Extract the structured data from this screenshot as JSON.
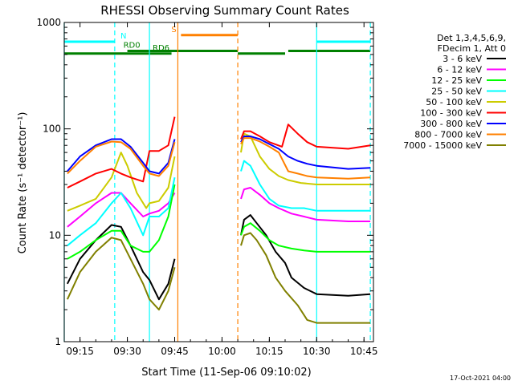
{
  "chart_data": {
    "type": "line",
    "title": "RHESSI Observing Summary Count Rates",
    "xlabel": "Start Time (11-Sep-06 09:10:02)",
    "ylabel": "Count Rate (s⁻¹ detector⁻¹)",
    "y_scale": "log",
    "ylim": [
      1,
      1000
    ],
    "xlim": [
      "09:10",
      "10:48"
    ],
    "x_ticks": [
      "09:15",
      "09:30",
      "09:45",
      "10:00",
      "10:15",
      "10:30",
      "10:45"
    ],
    "y_ticks": [
      "1",
      "10",
      "100",
      "1000"
    ],
    "footer_date": "17-Oct-2021 04:00",
    "legend": {
      "header": [
        "Det 1,3,4,5,6,9,",
        "FDecim 1, Att 0"
      ],
      "placement": "right"
    },
    "gaps": [
      [
        "09:46",
        "10:06"
      ]
    ],
    "series": [
      {
        "name": "3 - 6 keV",
        "color": "#000000",
        "points": [
          [
            "09:11",
            3.5
          ],
          [
            "09:15",
            6
          ],
          [
            "09:20",
            9
          ],
          [
            "09:25",
            12.5
          ],
          [
            "09:28",
            12
          ],
          [
            "09:31",
            8
          ],
          [
            "09:35",
            4.5
          ],
          [
            "09:37",
            3.8
          ],
          [
            "09:40",
            2.5
          ],
          [
            "09:43",
            3.5
          ],
          [
            "09:45",
            6
          ],
          [
            "10:06",
            10
          ],
          [
            "10:07",
            14
          ],
          [
            "10:09",
            15.5
          ],
          [
            "10:11",
            13
          ],
          [
            "10:14",
            10
          ],
          [
            "10:17",
            7
          ],
          [
            "10:20",
            5.5
          ],
          [
            "10:22",
            4
          ],
          [
            "10:26",
            3.2
          ],
          [
            "10:30",
            2.8
          ],
          [
            "10:40",
            2.7
          ],
          [
            "10:47",
            2.8
          ]
        ]
      },
      {
        "name": "6 - 12 keV",
        "color": "#ff00ff",
        "points": [
          [
            "09:11",
            12
          ],
          [
            "09:15",
            15
          ],
          [
            "09:20",
            20
          ],
          [
            "09:25",
            25
          ],
          [
            "09:28",
            25
          ],
          [
            "09:31",
            20
          ],
          [
            "09:35",
            15
          ],
          [
            "09:37",
            16
          ],
          [
            "09:40",
            17
          ],
          [
            "09:43",
            20
          ],
          [
            "09:45",
            25
          ],
          [
            "10:06",
            22
          ],
          [
            "10:07",
            27
          ],
          [
            "10:09",
            28
          ],
          [
            "10:12",
            24
          ],
          [
            "10:15",
            20
          ],
          [
            "10:18",
            18
          ],
          [
            "10:22",
            16
          ],
          [
            "10:26",
            15
          ],
          [
            "10:30",
            14
          ],
          [
            "10:40",
            13.5
          ],
          [
            "10:47",
            13.5
          ]
        ]
      },
      {
        "name": "12 - 25 keV",
        "color": "#00ff00",
        "points": [
          [
            "09:11",
            6
          ],
          [
            "09:15",
            7
          ],
          [
            "09:20",
            9
          ],
          [
            "09:25",
            11
          ],
          [
            "09:28",
            11
          ],
          [
            "09:31",
            8
          ],
          [
            "09:35",
            7
          ],
          [
            "09:37",
            7
          ],
          [
            "09:40",
            9
          ],
          [
            "09:43",
            15
          ],
          [
            "09:45",
            30
          ],
          [
            "10:06",
            10
          ],
          [
            "10:07",
            12
          ],
          [
            "10:09",
            13
          ],
          [
            "10:12",
            11
          ],
          [
            "10:15",
            9
          ],
          [
            "10:18",
            8
          ],
          [
            "10:22",
            7.5
          ],
          [
            "10:26",
            7.2
          ],
          [
            "10:30",
            7
          ],
          [
            "10:40",
            7
          ],
          [
            "10:47",
            7
          ]
        ]
      },
      {
        "name": "25 - 50 keV",
        "color": "#00ffff",
        "points": [
          [
            "09:11",
            8
          ],
          [
            "09:15",
            10
          ],
          [
            "09:20",
            13
          ],
          [
            "09:25",
            20
          ],
          [
            "09:28",
            25
          ],
          [
            "09:31",
            18
          ],
          [
            "09:35",
            10
          ],
          [
            "09:37",
            15
          ],
          [
            "09:40",
            15
          ],
          [
            "09:43",
            18
          ],
          [
            "09:45",
            35
          ],
          [
            "10:06",
            40
          ],
          [
            "10:07",
            50
          ],
          [
            "10:09",
            45
          ],
          [
            "10:12",
            30
          ],
          [
            "10:15",
            22
          ],
          [
            "10:18",
            19
          ],
          [
            "10:22",
            18
          ],
          [
            "10:26",
            18
          ],
          [
            "10:30",
            17
          ],
          [
            "10:40",
            17
          ],
          [
            "10:47",
            17
          ]
        ]
      },
      {
        "name": "50 - 100 keV",
        "color": "#cccc00",
        "points": [
          [
            "09:11",
            17
          ],
          [
            "09:15",
            19
          ],
          [
            "09:20",
            22
          ],
          [
            "09:25",
            35
          ],
          [
            "09:28",
            60
          ],
          [
            "09:30",
            45
          ],
          [
            "09:33",
            25
          ],
          [
            "09:36",
            18
          ],
          [
            "09:37",
            20
          ],
          [
            "09:40",
            21
          ],
          [
            "09:43",
            28
          ],
          [
            "09:45",
            55
          ],
          [
            "10:06",
            60
          ],
          [
            "10:07",
            90
          ],
          [
            "10:09",
            85
          ],
          [
            "10:12",
            55
          ],
          [
            "10:15",
            42
          ],
          [
            "10:18",
            36
          ],
          [
            "10:21",
            33
          ],
          [
            "10:25",
            31
          ],
          [
            "10:30",
            30
          ],
          [
            "10:40",
            30
          ],
          [
            "10:47",
            30
          ]
        ]
      },
      {
        "name": "100 - 300 keV",
        "color": "#ff0000",
        "points": [
          [
            "09:11",
            28
          ],
          [
            "09:15",
            32
          ],
          [
            "09:20",
            38
          ],
          [
            "09:25",
            42
          ],
          [
            "09:28",
            38
          ],
          [
            "09:31",
            35
          ],
          [
            "09:35",
            32
          ],
          [
            "09:37",
            62
          ],
          [
            "09:40",
            62
          ],
          [
            "09:43",
            70
          ],
          [
            "09:45",
            130
          ],
          [
            "10:06",
            80
          ],
          [
            "10:07",
            95
          ],
          [
            "10:09",
            95
          ],
          [
            "10:12",
            85
          ],
          [
            "10:15",
            75
          ],
          [
            "10:19",
            68
          ],
          [
            "10:21",
            110
          ],
          [
            "10:24",
            90
          ],
          [
            "10:27",
            75
          ],
          [
            "10:30",
            68
          ],
          [
            "10:40",
            65
          ],
          [
            "10:47",
            70
          ]
        ]
      },
      {
        "name": "300 - 800 keV",
        "color": "#0000ff",
        "points": [
          [
            "09:11",
            40
          ],
          [
            "09:15",
            55
          ],
          [
            "09:20",
            70
          ],
          [
            "09:25",
            80
          ],
          [
            "09:28",
            80
          ],
          [
            "09:31",
            68
          ],
          [
            "09:35",
            48
          ],
          [
            "09:37",
            40
          ],
          [
            "09:40",
            38
          ],
          [
            "09:43",
            48
          ],
          [
            "09:45",
            80
          ],
          [
            "10:06",
            75
          ],
          [
            "10:07",
            85
          ],
          [
            "10:09",
            85
          ],
          [
            "10:12",
            80
          ],
          [
            "10:15",
            72
          ],
          [
            "10:18",
            65
          ],
          [
            "10:21",
            55
          ],
          [
            "10:24",
            50
          ],
          [
            "10:27",
            47
          ],
          [
            "10:30",
            45
          ],
          [
            "10:40",
            42
          ],
          [
            "10:47",
            43
          ]
        ]
      },
      {
        "name": "800 - 7000 keV",
        "color": "#ff8000",
        "points": [
          [
            "09:11",
            38
          ],
          [
            "09:15",
            50
          ],
          [
            "09:20",
            68
          ],
          [
            "09:25",
            76
          ],
          [
            "09:28",
            75
          ],
          [
            "09:31",
            65
          ],
          [
            "09:35",
            45
          ],
          [
            "09:37",
            38
          ],
          [
            "09:40",
            36
          ],
          [
            "09:43",
            45
          ],
          [
            "09:45",
            75
          ],
          [
            "10:06",
            72
          ],
          [
            "10:07",
            82
          ],
          [
            "10:09",
            82
          ],
          [
            "10:12",
            76
          ],
          [
            "10:15",
            68
          ],
          [
            "10:18",
            60
          ],
          [
            "10:21",
            40
          ],
          [
            "10:24",
            38
          ],
          [
            "10:27",
            36
          ],
          [
            "10:30",
            35
          ],
          [
            "10:40",
            34
          ],
          [
            "10:47",
            35
          ]
        ]
      },
      {
        "name": "7000 - 15000 keV",
        "color": "#808000",
        "points": [
          [
            "09:11",
            2.5
          ],
          [
            "09:15",
            4.5
          ],
          [
            "09:20",
            7
          ],
          [
            "09:25",
            9.5
          ],
          [
            "09:28",
            9
          ],
          [
            "09:31",
            6
          ],
          [
            "09:35",
            3.5
          ],
          [
            "09:37",
            2.5
          ],
          [
            "09:40",
            2
          ],
          [
            "09:43",
            3
          ],
          [
            "09:45",
            5
          ],
          [
            "10:06",
            8
          ],
          [
            "10:07",
            10
          ],
          [
            "10:09",
            10.5
          ],
          [
            "10:11",
            9
          ],
          [
            "10:14",
            6.5
          ],
          [
            "10:17",
            4
          ],
          [
            "10:20",
            3
          ],
          [
            "10:24",
            2.2
          ],
          [
            "10:27",
            1.6
          ],
          [
            "10:30",
            1.5
          ],
          [
            "10:40",
            1.5
          ],
          [
            "10:47",
            1.5
          ]
        ]
      }
    ],
    "flags": [
      {
        "label": "N",
        "color": "#00ffff",
        "level": 660,
        "spans": [
          [
            "09:10",
            "09:26"
          ],
          [
            "10:30",
            "10:47"
          ]
        ]
      },
      {
        "label": "RD0",
        "color": "#008000",
        "level": 540,
        "spans": [
          [
            "09:30",
            "10:05"
          ],
          [
            "10:21",
            "10:47"
          ]
        ]
      },
      {
        "label": "RD6",
        "color": "#008000",
        "level": 510,
        "spans": [
          [
            "09:10",
            "09:44"
          ],
          [
            "10:05",
            "10:20"
          ]
        ]
      },
      {
        "label": "S",
        "color": "#ff8000",
        "level": 760,
        "spans": [
          [
            "09:47",
            "10:05"
          ]
        ]
      }
    ],
    "vertical_lines": [
      {
        "time": "09:10",
        "color": "#00ffff",
        "style": "solid"
      },
      {
        "time": "09:26",
        "color": "#00ffff",
        "style": "dashed"
      },
      {
        "time": "09:37",
        "color": "#00ffff",
        "style": "solid"
      },
      {
        "time": "09:46",
        "color": "#ff8000",
        "style": "solid"
      },
      {
        "time": "10:05",
        "color": "#ff8000",
        "style": "dashed"
      },
      {
        "time": "10:30",
        "color": "#00ffff",
        "style": "solid"
      },
      {
        "time": "10:47",
        "color": "#00ffff",
        "style": "dashed"
      }
    ]
  }
}
